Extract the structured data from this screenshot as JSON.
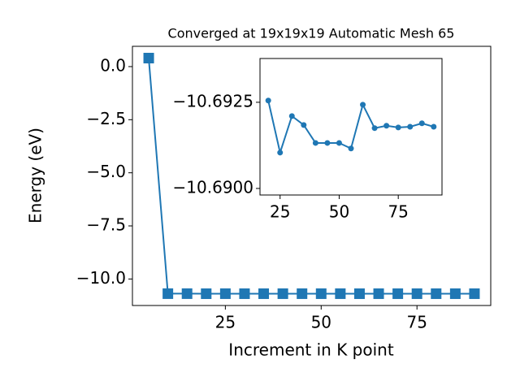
{
  "chart_data": {
    "type": "line",
    "title": "Converged at 19x19x19 Automatic Mesh 65",
    "x_label": "Increment in K point",
    "y_label": "Energy (eV)",
    "x": [
      5,
      10,
      15,
      20,
      25,
      30,
      35,
      40,
      45,
      50,
      55,
      60,
      65,
      70,
      75,
      80,
      85,
      90
    ],
    "series": [
      {
        "color": "#1f77b4",
        "values": [
          0.4,
          -10.69,
          -10.69,
          -10.69255,
          -10.69104,
          -10.6921,
          -10.69184,
          -10.69132,
          -10.69132,
          -10.69132,
          -10.69116,
          -10.69243,
          -10.69175,
          -10.69182,
          -10.69177,
          -10.69179,
          -10.69189,
          -10.69179
        ]
      }
    ],
    "xlim": [
      0.75,
      94.25
    ],
    "xticks": [
      25,
      50,
      75
    ],
    "ylim": [
      -11.248,
      0.955
    ],
    "yticks": [
      {
        "value": 0,
        "label": "0.0"
      },
      {
        "value": -2.5,
        "label": "−2.5"
      },
      {
        "value": -5,
        "label": "−5.0"
      },
      {
        "value": -7.5,
        "label": "−7.5"
      },
      {
        "value": -10,
        "label": "−10.0"
      }
    ],
    "inset": {
      "xlim": [
        16.5,
        93.5
      ],
      "xticks": [
        25,
        50,
        75
      ],
      "ylim": [
        -10.68981,
        -10.69377
      ],
      "yticks": [
        {
          "value": -10.6925,
          "label": "−10.6925"
        },
        {
          "value": -10.69,
          "label": "−10.6900"
        }
      ]
    }
  }
}
